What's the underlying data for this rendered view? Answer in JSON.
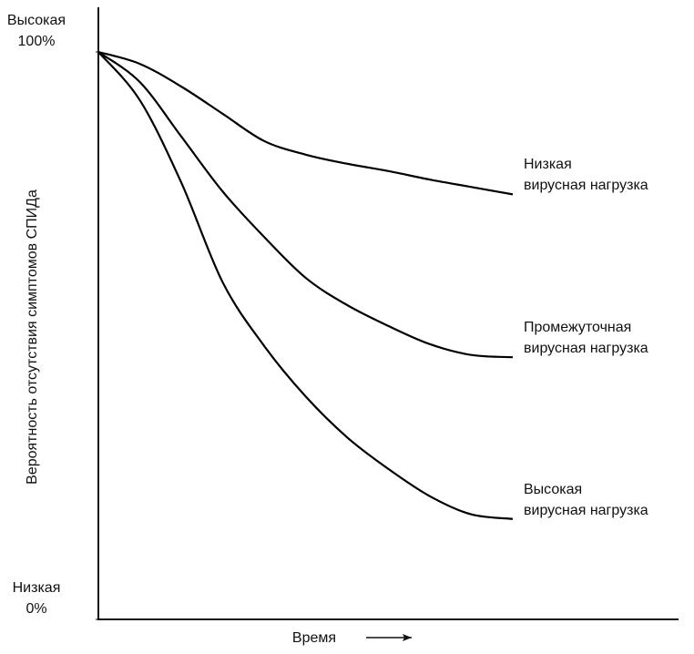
{
  "chart_data": {
    "type": "line",
    "x_label": "Время",
    "y_label": "Вероятность отсутствия симптомов СПИДа",
    "x": [
      0,
      1,
      2,
      3,
      4,
      5,
      6,
      7,
      8,
      9,
      10
    ],
    "xlim": [
      0,
      14
    ],
    "ylim": [
      0,
      100
    ],
    "yticks": [
      {
        "value": 0,
        "label": "Низкая\n0%"
      },
      {
        "value": 100,
        "label": "Высокая\n100%"
      }
    ],
    "series": [
      {
        "name": "Низкая\nвирусная нагрузка",
        "color": "#000000",
        "values": [
          100,
          97.9,
          93.9,
          89.1,
          84.3,
          81.9,
          80.3,
          79.0,
          77.5,
          76.2,
          74.9
        ]
      },
      {
        "name": "Промежуточная\nвирусная нагрузка",
        "color": "#000000",
        "values": [
          100,
          94.7,
          85.1,
          75.4,
          67.4,
          60.2,
          55.4,
          51.7,
          48.5,
          46.6,
          46.2
        ]
      },
      {
        "name": "Высокая\nвирусная нагрузка",
        "color": "#000000",
        "values": [
          100,
          91.5,
          77.0,
          59.4,
          48.2,
          39.3,
          32.1,
          26.5,
          21.7,
          18.5,
          17.7
        ]
      }
    ]
  }
}
